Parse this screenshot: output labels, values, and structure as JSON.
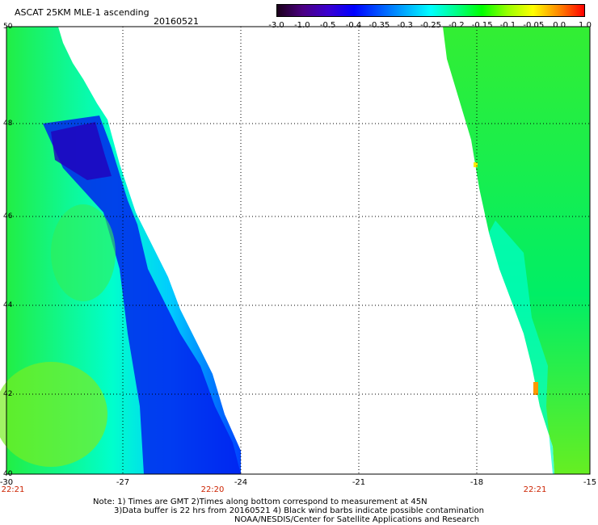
{
  "header": {
    "title": "ASCAT 25KM MLE-1 ascending",
    "date": "20160521"
  },
  "colorbar": {
    "labels": [
      "-3.0",
      "-1.0",
      "-0.5",
      "-0.4",
      "-0.35",
      "-0.3",
      "-0.25",
      "-0.2",
      "-0.15",
      "-0.1",
      "-0.05",
      "0.0",
      "1.0"
    ],
    "colors": [
      "#1a001a",
      "#4b0082",
      "#3a00d0",
      "#0000ff",
      "#0055ff",
      "#00aaff",
      "#00ffff",
      "#00ff88",
      "#00ff00",
      "#99ff00",
      "#ffff00",
      "#ff8800",
      "#ff0000"
    ]
  },
  "axes": {
    "x_ticks": [
      "-30",
      "-27",
      "-24",
      "-21",
      "-18",
      "-15"
    ],
    "y_ticks": [
      "50",
      "48",
      "46",
      "44",
      "42",
      "40"
    ]
  },
  "times": {
    "left": "22:21",
    "middle": "22:20",
    "right": "22:21"
  },
  "notes": {
    "line1": "Note: 1) Times are GMT 2)Times along bottom correspond to measurement at 45N",
    "line2": "3)Data buffer is 22 hrs from 20160521 4) Black wind barbs indicate possible contamination",
    "line3": "NOAA/NESDIS/Center for Satellite Applications and Research"
  }
}
